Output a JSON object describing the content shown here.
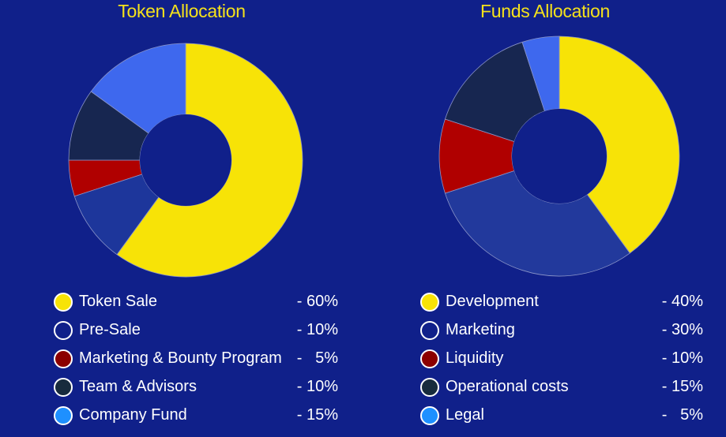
{
  "chart_data": [
    {
      "type": "pie",
      "donut": true,
      "title": "Token Allocation",
      "slices": [
        {
          "label": "Token Sale",
          "value": 60,
          "value_text": "- 60%",
          "color": "#f7e307",
          "swatch": "#f7e307"
        },
        {
          "label": "Pre-Sale",
          "value": 10,
          "value_text": "- 10%",
          "color": "#1d369b",
          "swatch": "#10208a"
        },
        {
          "label": "Marketing & Bounty Program",
          "value": 5,
          "value_text": "-   5%",
          "color": "#b00000",
          "swatch": "#8b0000"
        },
        {
          "label": "Team & Advisors",
          "value": 10,
          "value_text": "- 10%",
          "color": "#172650",
          "swatch": "#172b3d"
        },
        {
          "label": "Company Fund",
          "value": 15,
          "value_text": "- 15%",
          "color": "#3e68ee",
          "swatch": "#1e90ff"
        }
      ]
    },
    {
      "type": "pie",
      "donut": true,
      "title": "Funds Allocation",
      "slices": [
        {
          "label": "Development",
          "value": 40,
          "value_text": "- 40%",
          "color": "#f7e307",
          "swatch": "#f7e307"
        },
        {
          "label": "Marketing",
          "value": 30,
          "value_text": "- 30%",
          "color": "#22399c",
          "swatch": "#10208a"
        },
        {
          "label": "Liquidity",
          "value": 10,
          "value_text": "- 10%",
          "color": "#b00000",
          "swatch": "#8b0000"
        },
        {
          "label": "Operational costs",
          "value": 15,
          "value_text": "- 15%",
          "color": "#172650",
          "swatch": "#172b3d"
        },
        {
          "label": "Legal",
          "value": 5,
          "value_text": "-   5%",
          "color": "#3e68ee",
          "swatch": "#1e90ff"
        }
      ]
    }
  ],
  "colors": {
    "background": "#10208a",
    "title": "#f5e21b",
    "legend_text": "#ffffff"
  }
}
